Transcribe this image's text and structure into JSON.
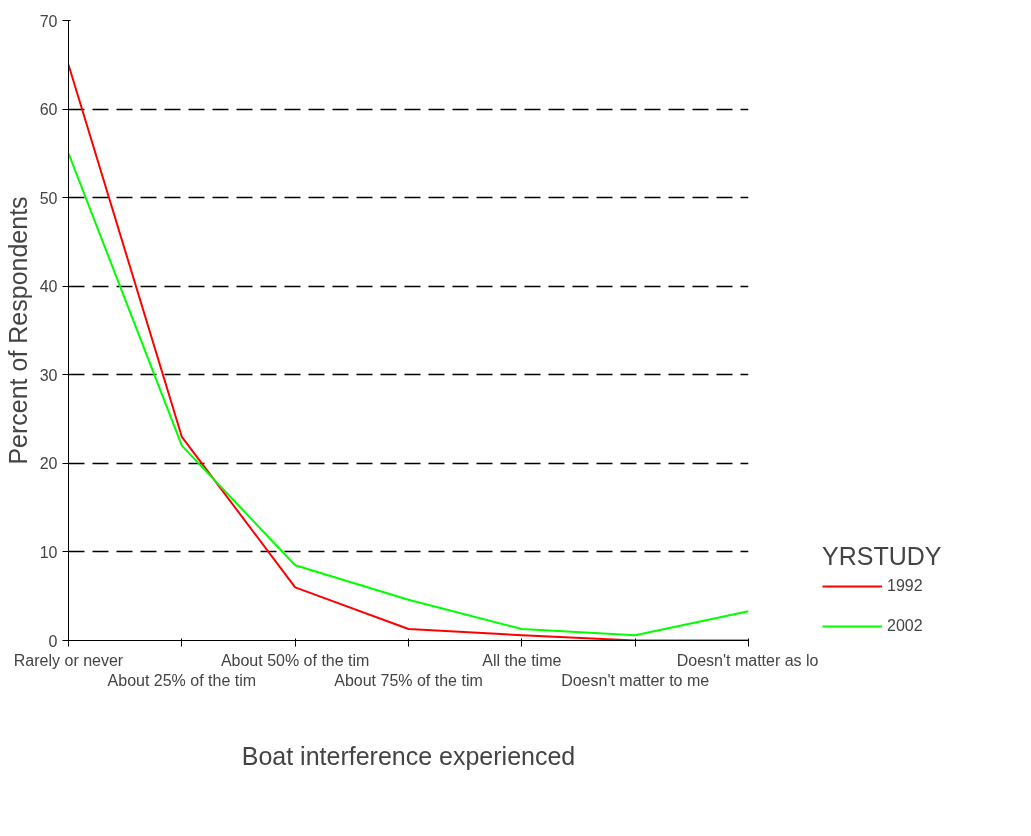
{
  "chart_data": {
    "type": "line",
    "xlabel": "Boat interference experienced",
    "ylabel": "Percent of Respondents",
    "legend_title": "YRSTUDY",
    "categories": [
      "Rarely or never",
      "About 25% of the tim",
      "About 50% of the tim",
      "About 75% of the tim",
      "All the time",
      "Doesn't matter to me",
      "Doesn't matter as lo"
    ],
    "series": [
      {
        "name": "1992",
        "color": "#ff0000",
        "values": [
          65,
          23,
          6,
          1.3,
          0.6,
          0,
          0
        ]
      },
      {
        "name": "2002",
        "color": "#00ff00",
        "values": [
          55,
          22,
          8.5,
          4.6,
          1.3,
          0.6,
          3.3
        ]
      }
    ],
    "ylim": [
      0,
      70
    ],
    "yticks": [
      0,
      10,
      20,
      30,
      40,
      50,
      60,
      70
    ],
    "grid": "y",
    "legend": "right"
  }
}
